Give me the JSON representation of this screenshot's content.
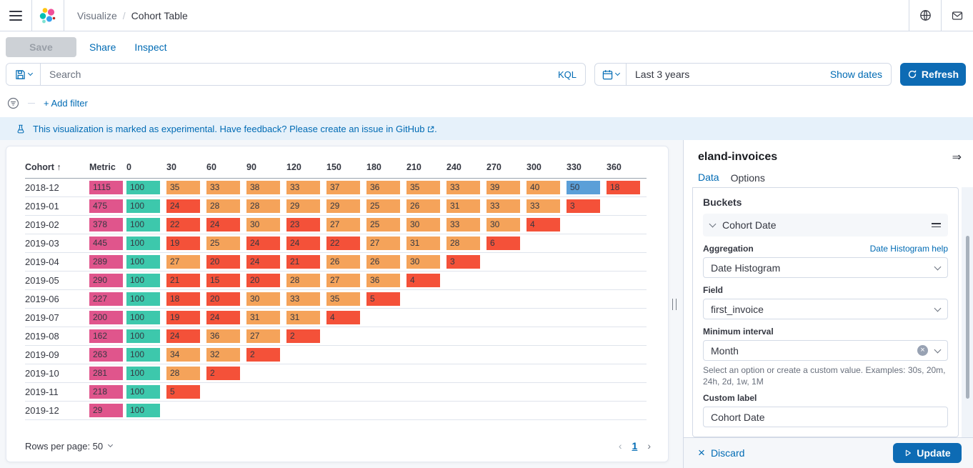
{
  "colors": {
    "primary": "#0D6BB4",
    "link": "#006BB4",
    "text": "#343741",
    "border": "#D3DAE6",
    "page_bg": "#F5F7FA",
    "banner_bg": "#E6F1FA"
  },
  "header": {
    "breadcrumb": [
      "Visualize",
      "Cohort Table"
    ]
  },
  "toolbar": {
    "save": "Save",
    "share": "Share",
    "inspect": "Inspect"
  },
  "query_bar": {
    "search_placeholder": "Search",
    "language": "KQL",
    "date_range": "Last 3 years",
    "show_dates": "Show dates",
    "refresh": "Refresh"
  },
  "filter_bar": {
    "add_filter": "+ Add filter"
  },
  "banner": {
    "message": "This visualization is marked as experimental. Have feedback? Please create an issue in",
    "link": "GitHub",
    "suffix": "."
  },
  "chart_data": {
    "type": "table",
    "title": "Cohort Table",
    "columns": [
      "Cohort",
      "Metric",
      "0",
      "30",
      "60",
      "90",
      "120",
      "150",
      "180",
      "210",
      "240",
      "270",
      "300",
      "330",
      "360"
    ],
    "sort": {
      "column": "Cohort",
      "direction": "asc",
      "indicator": "↑"
    },
    "rows": [
      {
        "cohort": "2018-12",
        "metric": 1115,
        "values": [
          100,
          35,
          33,
          38,
          33,
          37,
          36,
          35,
          33,
          39,
          40,
          50,
          18
        ]
      },
      {
        "cohort": "2019-01",
        "metric": 475,
        "values": [
          100,
          24,
          28,
          28,
          29,
          29,
          25,
          26,
          31,
          33,
          33,
          3
        ]
      },
      {
        "cohort": "2019-02",
        "metric": 378,
        "values": [
          100,
          22,
          24,
          30,
          23,
          27,
          25,
          30,
          33,
          30,
          4
        ]
      },
      {
        "cohort": "2019-03",
        "metric": 445,
        "values": [
          100,
          19,
          25,
          24,
          24,
          22,
          27,
          31,
          28,
          6
        ]
      },
      {
        "cohort": "2019-04",
        "metric": 289,
        "values": [
          100,
          27,
          20,
          24,
          21,
          26,
          26,
          30,
          3
        ]
      },
      {
        "cohort": "2019-05",
        "metric": 290,
        "values": [
          100,
          21,
          15,
          20,
          28,
          27,
          36,
          4
        ]
      },
      {
        "cohort": "2019-06",
        "metric": 227,
        "values": [
          100,
          18,
          20,
          30,
          33,
          35,
          5
        ]
      },
      {
        "cohort": "2019-07",
        "metric": 200,
        "values": [
          100,
          19,
          24,
          31,
          31,
          4
        ]
      },
      {
        "cohort": "2019-08",
        "metric": 162,
        "values": [
          100,
          24,
          36,
          27,
          2
        ]
      },
      {
        "cohort": "2019-09",
        "metric": 263,
        "values": [
          100,
          34,
          32,
          2
        ]
      },
      {
        "cohort": "2019-10",
        "metric": 281,
        "values": [
          100,
          28,
          2
        ]
      },
      {
        "cohort": "2019-11",
        "metric": 218,
        "values": [
          100,
          5
        ]
      },
      {
        "cohort": "2019-12",
        "metric": 29,
        "values": [
          100
        ]
      }
    ],
    "color_scale": {
      "metric": "#E0558C",
      "value_100": "#3DC8AC",
      "value_50_99": "#5B9FD8",
      "value_25_49": "#F5A35A",
      "value_0_24": "#F45139"
    }
  },
  "table_footer": {
    "rows_per_page": "Rows per page: 50",
    "page": "1"
  },
  "side_panel": {
    "title": "eland-invoices",
    "tabs": [
      {
        "label": "Data",
        "active": true
      },
      {
        "label": "Options",
        "active": false
      }
    ],
    "buckets": {
      "heading": "Buckets",
      "accordion_label": "Cohort Date",
      "aggregation_label": "Aggregation",
      "aggregation_help": "Date Histogram help",
      "aggregation_value": "Date Histogram",
      "field_label": "Field",
      "field_value": "first_invoice",
      "min_interval_label": "Minimum interval",
      "min_interval_value": "Month",
      "min_interval_help": "Select an option or create a custom value. Examples: 30s, 20m, 24h, 2d, 1w, 1M",
      "custom_label_label": "Custom label",
      "custom_label_value": "Cohort Date"
    },
    "footer": {
      "discard": "Discard",
      "update": "Update"
    }
  }
}
